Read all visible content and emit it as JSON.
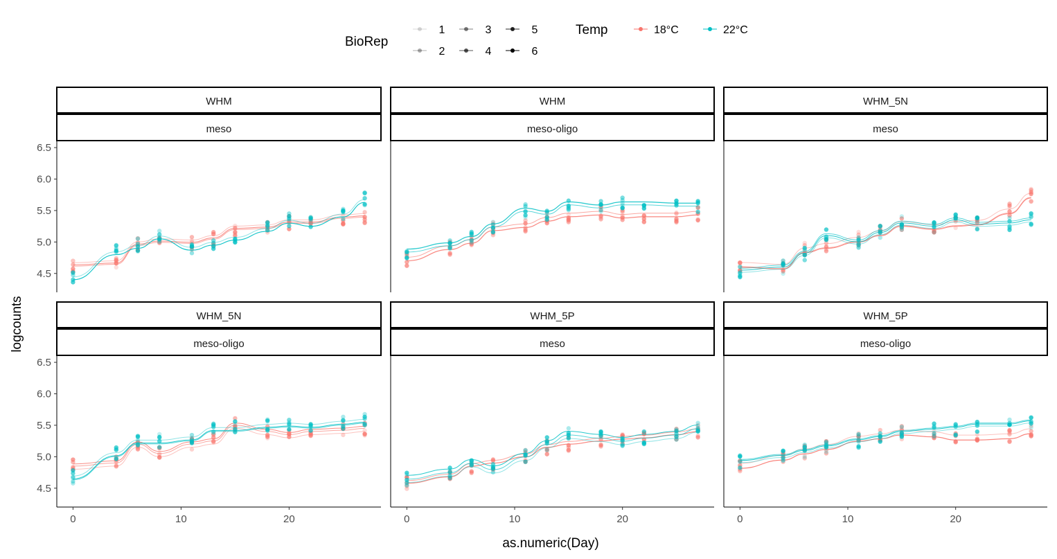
{
  "chart_data": {
    "type": "scatter",
    "xlabel": "as.numeric(Day)",
    "ylabel": "logcounts",
    "xlim": [
      -1.5,
      28.5
    ],
    "ylim": [
      4.2,
      6.6
    ],
    "x_ticks": [
      0,
      10,
      20
    ],
    "y_ticks": [
      4.5,
      5.0,
      5.5,
      6.0,
      6.5
    ],
    "y_tick_labels": [
      "4.5",
      "5.0",
      "5.5",
      "6.0",
      "6.5"
    ],
    "grid": false,
    "legend": {
      "position": "top",
      "biorep_title": "BioRep",
      "biorep_items": [
        {
          "label": "1",
          "alpha": 0.15
        },
        {
          "label": "2",
          "alpha": 0.32
        },
        {
          "label": "3",
          "alpha": 0.5
        },
        {
          "label": "4",
          "alpha": 0.67
        },
        {
          "label": "5",
          "alpha": 0.84
        },
        {
          "label": "6",
          "alpha": 1.0
        }
      ],
      "temp_title": "Temp",
      "temp_items": [
        {
          "label": "18°C",
          "color": "#F8766D"
        },
        {
          "label": "22°C",
          "color": "#00BFC4"
        }
      ]
    },
    "days": [
      0,
      4,
      6,
      8,
      11,
      13,
      15,
      18,
      20,
      22,
      25,
      27
    ],
    "facets": [
      {
        "strip_top": "WHM",
        "strip_bottom": "meso",
        "series": [
          {
            "temp": "18°C",
            "values": [
              4.62,
              4.65,
              4.95,
              5.0,
              4.98,
              5.05,
              5.2,
              5.22,
              5.3,
              5.3,
              5.38,
              5.4
            ]
          },
          {
            "temp": "22°C",
            "values": [
              4.45,
              4.85,
              4.95,
              5.1,
              4.92,
              5.0,
              5.08,
              5.22,
              5.35,
              5.3,
              5.45,
              5.68
            ]
          }
        ]
      },
      {
        "strip_top": "WHM",
        "strip_bottom": "meso-oligo",
        "series": [
          {
            "temp": "18°C",
            "values": [
              4.72,
              4.9,
              5.0,
              5.2,
              5.25,
              5.35,
              5.42,
              5.45,
              5.4,
              5.42,
              5.42,
              5.45
            ]
          },
          {
            "temp": "22°C",
            "values": [
              4.85,
              4.95,
              5.05,
              5.25,
              5.5,
              5.45,
              5.6,
              5.55,
              5.6,
              5.6,
              5.58,
              5.58
            ]
          }
        ]
      },
      {
        "strip_top": "WHM_5N",
        "strip_bottom": "meso",
        "series": [
          {
            "temp": "18°C",
            "values": [
              4.65,
              4.62,
              4.88,
              4.95,
              5.05,
              5.15,
              5.3,
              5.25,
              5.3,
              5.32,
              5.5,
              5.75
            ]
          },
          {
            "temp": "22°C",
            "values": [
              4.55,
              4.6,
              4.82,
              5.1,
              5.0,
              5.15,
              5.3,
              5.25,
              5.35,
              5.28,
              5.3,
              5.35
            ]
          }
        ]
      },
      {
        "strip_top": "WHM_5N",
        "strip_bottom": "meso-oligo",
        "series": [
          {
            "temp": "18°C",
            "values": [
              4.85,
              4.9,
              5.2,
              5.05,
              5.2,
              5.25,
              5.5,
              5.4,
              5.35,
              5.4,
              5.42,
              5.45
            ]
          },
          {
            "temp": "22°C",
            "values": [
              4.68,
              5.05,
              5.25,
              5.25,
              5.3,
              5.45,
              5.45,
              5.5,
              5.52,
              5.5,
              5.55,
              5.58
            ]
          }
        ]
      },
      {
        "strip_top": "WHM_5P",
        "strip_bottom": "meso",
        "series": [
          {
            "temp": "18°C",
            "values": [
              4.58,
              4.68,
              4.85,
              4.9,
              5.0,
              5.15,
              5.2,
              5.25,
              5.28,
              5.3,
              5.35,
              5.4
            ]
          },
          {
            "temp": "22°C",
            "values": [
              4.65,
              4.75,
              4.9,
              4.8,
              5.0,
              5.2,
              5.35,
              5.3,
              5.25,
              5.3,
              5.35,
              5.45
            ]
          }
        ]
      },
      {
        "strip_top": "WHM_5P",
        "strip_bottom": "meso-oligo",
        "series": [
          {
            "temp": "18°C",
            "values": [
              4.85,
              4.98,
              5.08,
              5.15,
              5.28,
              5.32,
              5.38,
              5.35,
              5.3,
              5.3,
              5.32,
              5.4
            ]
          },
          {
            "temp": "22°C",
            "values": [
              4.92,
              5.0,
              5.08,
              5.15,
              5.25,
              5.3,
              5.38,
              5.42,
              5.45,
              5.5,
              5.5,
              5.55
            ]
          }
        ]
      }
    ]
  }
}
